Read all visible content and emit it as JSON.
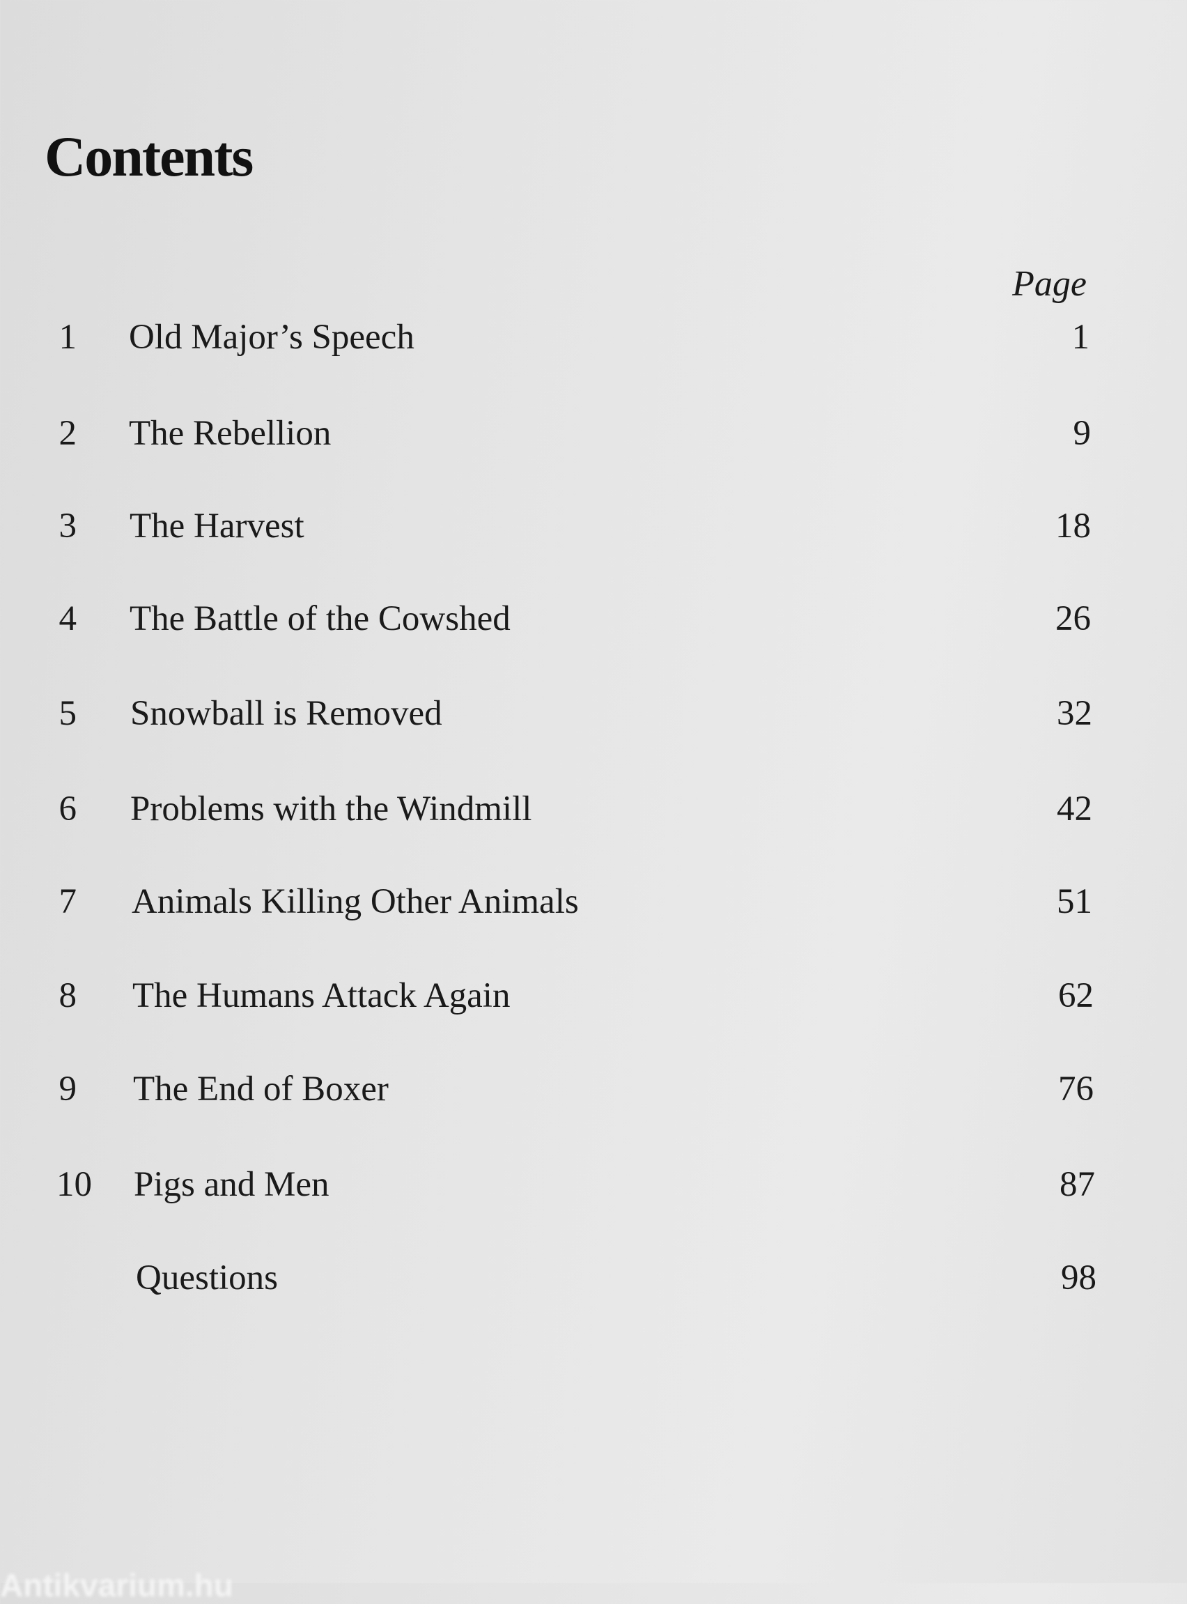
{
  "heading": "Contents",
  "page_column_label": "Page",
  "entries": [
    {
      "number": "1",
      "title": "Old Major’s Speech",
      "page": "1"
    },
    {
      "number": "2",
      "title": "The Rebellion",
      "page": "9"
    },
    {
      "number": "3",
      "title": "The Harvest",
      "page": "18"
    },
    {
      "number": "4",
      "title": "The Battle of the Cowshed",
      "page": "26"
    },
    {
      "number": "5",
      "title": "Snowball is Removed",
      "page": "32"
    },
    {
      "number": "6",
      "title": "Problems with the Windmill",
      "page": "42"
    },
    {
      "number": "7",
      "title": "Animals Killing Other Animals",
      "page": "51"
    },
    {
      "number": "8",
      "title": "The Humans Attack Again",
      "page": "62"
    },
    {
      "number": "9",
      "title": "The End of Boxer",
      "page": "76"
    },
    {
      "number": "10",
      "title": "Pigs and Men",
      "page": "87"
    },
    {
      "number": "",
      "title": "Questions",
      "page": "98"
    }
  ],
  "watermark": "Antikvarium.hu"
}
